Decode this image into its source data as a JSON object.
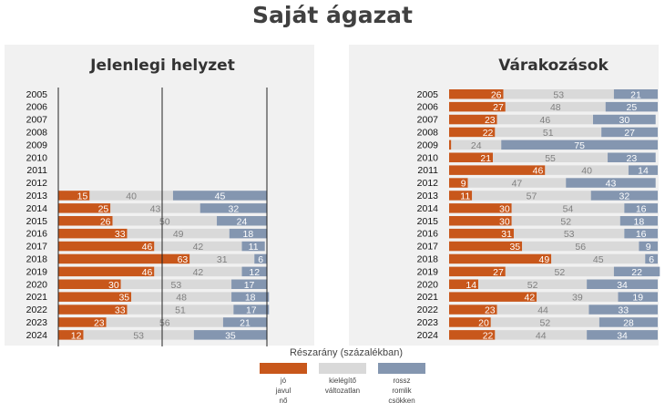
{
  "title": "Saját ágazat",
  "colors": {
    "good": "#c8571b",
    "neutral": "#d9d9d9",
    "bad": "#8496b0",
    "good_text": "#ffffff",
    "neutral_text": "#808080",
    "bad_text": "#ffffff"
  },
  "legend": {
    "title": "Részarány (százalékban)",
    "items": [
      {
        "key": "good",
        "lines": [
          "jó",
          "javul",
          "nő"
        ]
      },
      {
        "key": "neutral",
        "lines": [
          "kielégítő",
          "változatlan"
        ]
      },
      {
        "key": "bad",
        "lines": [
          "rossz",
          "romlik",
          "csökken"
        ]
      }
    ]
  },
  "chart_data": [
    {
      "type": "bar",
      "orientation": "horizontal-stacked",
      "title": "Jelenlegi helyzet",
      "xlim": [
        0,
        100
      ],
      "categories": [
        "2005",
        "2006",
        "2007",
        "2008",
        "2009",
        "2010",
        "2011",
        "2012",
        "2013",
        "2014",
        "2015",
        "2016",
        "2017",
        "2018",
        "2019",
        "2020",
        "2021",
        "2022",
        "2023",
        "2024"
      ],
      "series": [
        {
          "key": "good",
          "values": [
            null,
            null,
            null,
            null,
            null,
            null,
            null,
            null,
            15,
            25,
            26,
            33,
            46,
            63,
            46,
            30,
            35,
            33,
            23,
            12
          ]
        },
        {
          "key": "neutral",
          "values": [
            null,
            null,
            null,
            null,
            null,
            null,
            null,
            null,
            40,
            43,
            50,
            49,
            42,
            31,
            42,
            53,
            48,
            51,
            56,
            53
          ]
        },
        {
          "key": "bad",
          "values": [
            null,
            null,
            null,
            null,
            null,
            null,
            null,
            null,
            45,
            32,
            24,
            18,
            11,
            6,
            12,
            17,
            18,
            17,
            21,
            35
          ]
        }
      ]
    },
    {
      "type": "bar",
      "orientation": "horizontal-stacked",
      "title": "Várakozások",
      "xlim": [
        0,
        100
      ],
      "categories": [
        "2005",
        "2006",
        "2007",
        "2008",
        "2009",
        "2010",
        "2011",
        "2012",
        "2013",
        "2014",
        "2015",
        "2016",
        "2017",
        "2018",
        "2019",
        "2020",
        "2021",
        "2022",
        "2023",
        "2024"
      ],
      "series": [
        {
          "key": "good",
          "values": [
            26,
            27,
            23,
            22,
            1,
            21,
            46,
            9,
            11,
            30,
            30,
            31,
            35,
            49,
            27,
            14,
            42,
            23,
            20,
            22
          ]
        },
        {
          "key": "neutral",
          "values": [
            53,
            48,
            46,
            51,
            24,
            55,
            40,
            47,
            57,
            54,
            52,
            53,
            56,
            45,
            52,
            52,
            39,
            44,
            52,
            44
          ]
        },
        {
          "key": "bad",
          "values": [
            21,
            25,
            30,
            27,
            75,
            23,
            14,
            43,
            32,
            16,
            18,
            16,
            9,
            6,
            22,
            34,
            19,
            33,
            28,
            34
          ]
        }
      ]
    }
  ]
}
